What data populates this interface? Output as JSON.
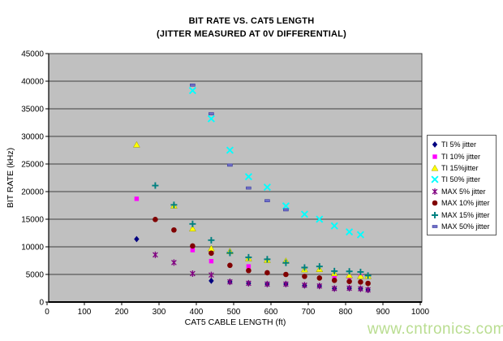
{
  "page": {
    "watermark": "www.cntronics.com"
  },
  "chart_data": {
    "type": "scatter",
    "title": "BIT RATE VS. CAT5 LENGTH",
    "subtitle": "(JITTER MEASURED AT 0V DIFFERENTIAL)",
    "xlabel": "CAT5 CABLE LENGTH (ft)",
    "ylabel": "BIT RATE (kHz)",
    "xlim": [
      0,
      1000
    ],
    "ylim": [
      0,
      45000
    ],
    "x_ticks": [
      0,
      100,
      200,
      300,
      400,
      500,
      600,
      700,
      800,
      900,
      1000
    ],
    "y_ticks": [
      0,
      5000,
      10000,
      15000,
      20000,
      25000,
      30000,
      35000,
      40000,
      45000
    ],
    "grid": "horizontal-only",
    "plot_bg": "#c0c0c0",
    "grid_color": "#3f3f3f",
    "legend_position": "right",
    "series": [
      {
        "name": "TI 5% jitter",
        "marker": "diamond",
        "color": "#000080",
        "points": [
          [
            240,
            11400
          ],
          [
            440,
            3850
          ],
          [
            490,
            3650
          ],
          [
            540,
            3400
          ],
          [
            590,
            3250
          ],
          [
            640,
            3250
          ],
          [
            690,
            3000
          ],
          [
            730,
            2900
          ],
          [
            770,
            2450
          ],
          [
            810,
            2500
          ],
          [
            840,
            2400
          ],
          [
            860,
            2200
          ]
        ]
      },
      {
        "name": "TI 10% jitter",
        "marker": "square",
        "color": "#ff00ff",
        "points": [
          [
            240,
            18700
          ],
          [
            390,
            9400
          ],
          [
            440,
            7400
          ],
          [
            540,
            6450
          ],
          [
            770,
            4500
          ],
          [
            810,
            4600
          ],
          [
            840,
            4650
          ]
        ]
      },
      {
        "name": "TI 15%jitter",
        "marker": "triangle",
        "color": "#ffff00",
        "points": [
          [
            240,
            28500
          ],
          [
            340,
            17450
          ],
          [
            390,
            13300
          ],
          [
            440,
            9700
          ],
          [
            490,
            9200
          ],
          [
            540,
            7900
          ],
          [
            590,
            7600
          ],
          [
            640,
            7450
          ],
          [
            690,
            5900
          ],
          [
            730,
            5950
          ],
          [
            770,
            5200
          ],
          [
            810,
            4850
          ],
          [
            840,
            4700
          ],
          [
            860,
            4700
          ]
        ]
      },
      {
        "name": "TI 50% jitter",
        "marker": "x",
        "color": "#00ffff",
        "points": [
          [
            390,
            38300
          ],
          [
            440,
            33200
          ],
          [
            490,
            27500
          ],
          [
            540,
            22700
          ],
          [
            590,
            20800
          ],
          [
            640,
            17400
          ],
          [
            690,
            15900
          ],
          [
            730,
            15000
          ],
          [
            770,
            13800
          ],
          [
            810,
            12700
          ],
          [
            840,
            12200
          ]
        ]
      },
      {
        "name": "MAX 5% jitter",
        "marker": "star",
        "color": "#800080",
        "points": [
          [
            290,
            8550
          ],
          [
            340,
            7150
          ],
          [
            390,
            5150
          ],
          [
            440,
            4900
          ],
          [
            490,
            3650
          ],
          [
            540,
            3400
          ],
          [
            590,
            3250
          ],
          [
            640,
            3250
          ],
          [
            690,
            3050
          ],
          [
            730,
            2900
          ],
          [
            770,
            2450
          ],
          [
            810,
            2500
          ],
          [
            840,
            2400
          ],
          [
            860,
            2200
          ]
        ]
      },
      {
        "name": "MAX 10% jitter",
        "marker": "circle",
        "color": "#800000",
        "points": [
          [
            290,
            14950
          ],
          [
            340,
            13050
          ],
          [
            390,
            10150
          ],
          [
            440,
            8850
          ],
          [
            490,
            6650
          ],
          [
            540,
            5700
          ],
          [
            590,
            5300
          ],
          [
            640,
            5000
          ],
          [
            690,
            4650
          ],
          [
            730,
            4350
          ],
          [
            770,
            3930
          ],
          [
            810,
            3720
          ],
          [
            840,
            3630
          ],
          [
            860,
            3380
          ]
        ]
      },
      {
        "name": "MAX 15% jitter",
        "marker": "plus",
        "color": "#008080",
        "points": [
          [
            290,
            21100
          ],
          [
            340,
            17600
          ],
          [
            390,
            14150
          ],
          [
            440,
            11200
          ],
          [
            490,
            8900
          ],
          [
            540,
            8100
          ],
          [
            590,
            7750
          ],
          [
            640,
            7100
          ],
          [
            690,
            6250
          ],
          [
            730,
            6450
          ],
          [
            770,
            5600
          ],
          [
            810,
            5550
          ],
          [
            840,
            5450
          ],
          [
            860,
            4800
          ]
        ]
      },
      {
        "name": "MAX 50% jitter",
        "marker": "dash",
        "color": "#6f6fc8",
        "points": [
          [
            390,
            39300
          ],
          [
            440,
            34100
          ],
          [
            490,
            24800
          ],
          [
            540,
            20650
          ],
          [
            590,
            18350
          ],
          [
            640,
            16700
          ]
        ]
      }
    ]
  }
}
